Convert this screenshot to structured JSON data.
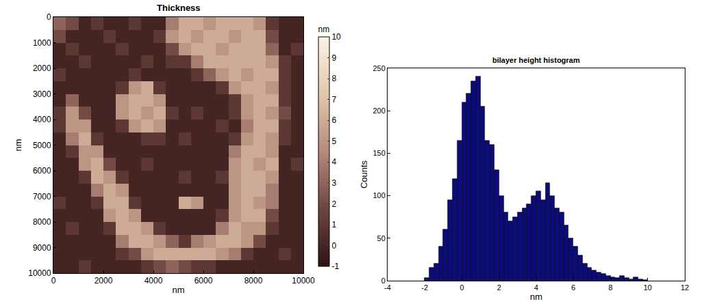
{
  "chart_data": [
    {
      "type": "heatmap",
      "title": "Thickness",
      "x_label": "nm",
      "y_label": "nm",
      "x": [
        250,
        750,
        1250,
        1750,
        2250,
        2750,
        3250,
        3750,
        4250,
        4750,
        5250,
        5750,
        6250,
        6750,
        7250,
        7750,
        8250,
        8750,
        9250,
        9750
      ],
      "y": [
        250,
        750,
        1250,
        1750,
        2250,
        2750,
        3250,
        3750,
        4250,
        4750,
        5250,
        5750,
        6250,
        6750,
        7250,
        7750,
        8250,
        8750,
        9250,
        9750
      ],
      "z": [
        [
          3,
          2,
          0,
          1,
          0,
          0,
          1,
          0,
          0,
          4,
          6,
          6,
          5,
          6,
          6,
          6,
          5,
          1,
          0,
          0
        ],
        [
          2,
          0,
          0,
          0,
          1,
          0,
          0,
          0,
          1,
          5,
          6,
          5,
          6,
          6,
          5,
          6,
          6,
          2,
          0,
          0
        ],
        [
          0,
          1,
          0,
          0,
          0,
          1,
          0,
          0,
          0,
          2,
          5,
          6,
          6,
          5,
          6,
          6,
          6,
          3,
          0,
          1
        ],
        [
          0,
          0,
          1,
          0,
          0,
          0,
          0,
          1,
          0,
          1,
          1,
          4,
          6,
          6,
          6,
          6,
          6,
          5,
          1,
          0
        ],
        [
          1,
          0,
          0,
          0,
          0,
          0,
          1,
          0,
          0,
          0,
          0,
          1,
          3,
          5,
          6,
          5,
          6,
          6,
          1,
          0
        ],
        [
          0,
          0,
          0,
          0,
          0,
          1,
          5,
          6,
          1,
          0,
          0,
          0,
          0,
          1,
          5,
          6,
          6,
          5,
          1,
          0
        ],
        [
          0,
          3,
          0,
          0,
          0,
          5,
          6,
          6,
          5,
          0,
          0,
          0,
          0,
          0,
          1,
          5,
          6,
          6,
          1,
          0
        ],
        [
          1,
          5,
          2,
          0,
          0,
          5,
          6,
          5,
          6,
          1,
          0,
          1,
          0,
          0,
          1,
          5,
          6,
          5,
          2,
          0
        ],
        [
          1,
          5,
          5,
          0,
          0,
          1,
          5,
          6,
          5,
          0,
          0,
          0,
          0,
          1,
          0,
          4,
          6,
          6,
          1,
          0
        ],
        [
          0,
          4,
          6,
          1,
          0,
          0,
          0,
          1,
          1,
          0,
          1,
          0,
          0,
          0,
          1,
          5,
          6,
          5,
          1,
          0
        ],
        [
          0,
          1,
          5,
          5,
          0,
          0,
          0,
          0,
          0,
          0,
          0,
          0,
          0,
          0,
          4,
          6,
          6,
          5,
          0,
          0
        ],
        [
          0,
          0,
          5,
          6,
          2,
          0,
          0,
          1,
          0,
          0,
          0,
          0,
          0,
          0,
          5,
          6,
          5,
          6,
          0,
          1
        ],
        [
          0,
          0,
          1,
          6,
          5,
          1,
          0,
          0,
          0,
          0,
          1,
          0,
          0,
          1,
          5,
          6,
          6,
          5,
          0,
          0
        ],
        [
          0,
          0,
          0,
          4,
          6,
          5,
          0,
          0,
          0,
          0,
          0,
          0,
          0,
          0,
          5,
          6,
          6,
          4,
          0,
          0
        ],
        [
          1,
          0,
          0,
          1,
          6,
          6,
          1,
          0,
          0,
          0,
          6,
          5,
          0,
          0,
          5,
          6,
          5,
          4,
          0,
          0
        ],
        [
          0,
          0,
          0,
          0,
          5,
          6,
          5,
          0,
          0,
          0,
          0,
          0,
          0,
          1,
          5,
          6,
          6,
          2,
          0,
          0
        ],
        [
          0,
          1,
          0,
          0,
          1,
          6,
          6,
          5,
          1,
          0,
          0,
          0,
          0,
          4,
          6,
          5,
          5,
          1,
          0,
          0
        ],
        [
          0,
          0,
          0,
          0,
          0,
          4,
          6,
          6,
          5,
          3,
          1,
          4,
          5,
          6,
          6,
          5,
          2,
          0,
          0,
          0
        ],
        [
          0,
          0,
          0,
          0,
          0,
          1,
          2,
          5,
          6,
          6,
          6,
          6,
          6,
          5,
          4,
          1,
          0,
          0,
          1,
          0
        ],
        [
          0,
          0,
          1,
          0,
          0,
          0,
          0,
          1,
          2,
          3,
          2,
          1,
          1,
          0,
          0,
          0,
          0,
          0,
          0,
          0
        ]
      ],
      "xlim": [
        0,
        10000
      ],
      "xticks": [
        0,
        2000,
        4000,
        6000,
        8000,
        10000
      ],
      "ylim": [
        10000,
        0
      ],
      "yticks": [
        0,
        1000,
        2000,
        3000,
        4000,
        5000,
        6000,
        7000,
        8000,
        9000,
        10000
      ],
      "colorbar_title": "nm",
      "colorbar_range": [
        -1,
        10
      ],
      "colorbar_ticks": [
        -1,
        0,
        1,
        2,
        3,
        4,
        5,
        6,
        7,
        8,
        9,
        10
      ],
      "colors": [
        "#2e1414",
        "#6e4440",
        "#b48a7c",
        "#e2c7ac",
        "#fbf3e6"
      ]
    },
    {
      "type": "histogram",
      "title": "bilayer height histogram",
      "x_label": "nm",
      "y_label": "Counts",
      "bins": [
        -2,
        -1.75,
        -1.5,
        -1.25,
        -1,
        -0.75,
        -0.5,
        -0.25,
        0,
        0.25,
        0.5,
        0.75,
        1,
        1.25,
        1.5,
        1.75,
        2,
        2.25,
        2.5,
        2.75,
        3,
        3.25,
        3.5,
        3.75,
        4,
        4.25,
        4.5,
        4.75,
        5,
        5.25,
        5.5,
        5.75,
        6,
        6.25,
        6.5,
        6.75,
        7,
        7.25,
        7.5,
        7.75,
        8,
        8.25,
        8.5,
        8.75,
        9,
        9.25,
        9.5,
        9.75,
        10
      ],
      "values": [
        3,
        15,
        20,
        40,
        60,
        95,
        120,
        165,
        210,
        220,
        235,
        240,
        205,
        165,
        160,
        130,
        100,
        80,
        70,
        75,
        80,
        85,
        90,
        100,
        105,
        95,
        115,
        100,
        85,
        80,
        65,
        50,
        40,
        30,
        20,
        15,
        12,
        10,
        8,
        6,
        4,
        3,
        6,
        3,
        2,
        4,
        2,
        1
      ],
      "color": "#0b0b7a",
      "xlim": [
        -4,
        12
      ],
      "xticks": [
        -4,
        -2,
        0,
        2,
        4,
        6,
        8,
        10,
        12
      ],
      "ylim": [
        0,
        250
      ],
      "yticks": [
        0,
        50,
        100,
        150,
        200,
        250
      ]
    }
  ]
}
